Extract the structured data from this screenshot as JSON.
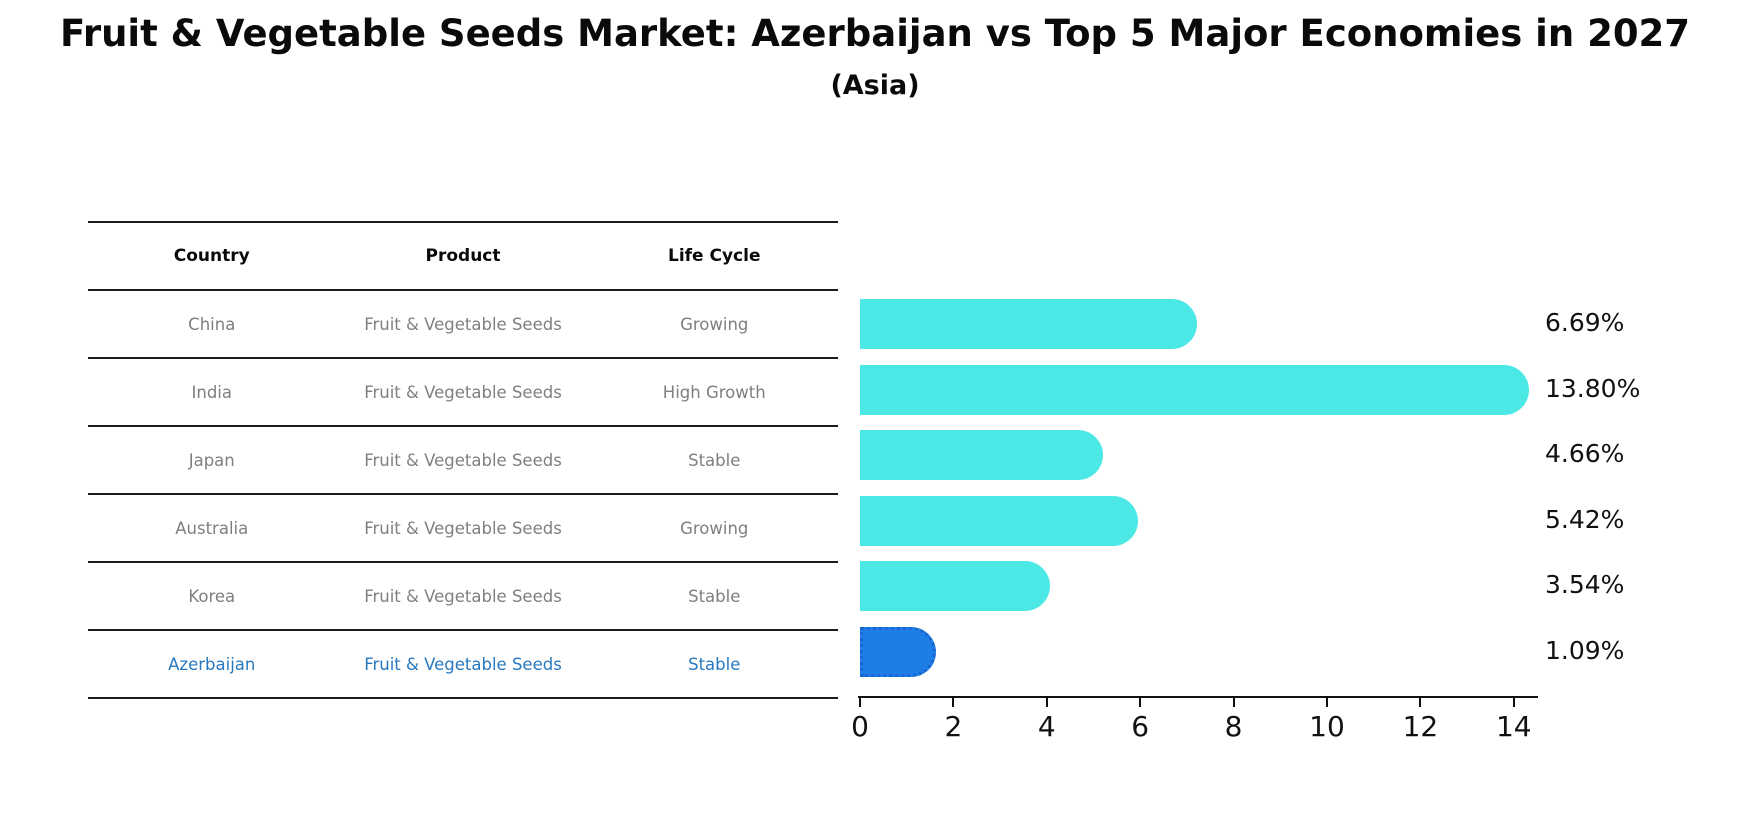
{
  "title": "Fruit & Vegetable Seeds Market: Azerbaijan vs Top 5 Major Economies in 2027",
  "subtitle": "(Asia)",
  "table": {
    "headers": [
      "Country",
      "Product",
      "Life Cycle"
    ],
    "rows": [
      {
        "country": "China",
        "product": "Fruit & Vegetable Seeds",
        "life_cycle": "Growing",
        "highlight": false
      },
      {
        "country": "India",
        "product": "Fruit & Vegetable Seeds",
        "life_cycle": "High Growth",
        "highlight": false
      },
      {
        "country": "Japan",
        "product": "Fruit & Vegetable Seeds",
        "life_cycle": "Stable",
        "highlight": false
      },
      {
        "country": "Australia",
        "product": "Fruit & Vegetable Seeds",
        "life_cycle": "Growing",
        "highlight": false
      },
      {
        "country": "Korea",
        "product": "Fruit & Vegetable Seeds",
        "life_cycle": "Stable",
        "highlight": false
      },
      {
        "country": "Azerbaijan",
        "product": "Fruit & Vegetable Seeds",
        "life_cycle": "Stable",
        "highlight": true
      }
    ]
  },
  "chart_data": {
    "type": "bar",
    "orientation": "horizontal",
    "title": "Fruit & Vegetable Seeds Market: Azerbaijan vs Top 5 Major Economies in 2027 (Asia)",
    "categories": [
      "China",
      "India",
      "Japan",
      "Australia",
      "Korea",
      "Azerbaijan"
    ],
    "values": [
      6.69,
      13.8,
      4.66,
      5.42,
      3.54,
      1.09
    ],
    "value_labels": [
      "6.69%",
      "13.80%",
      "4.66%",
      "5.42%",
      "3.54%",
      "1.09%"
    ],
    "xlim": [
      0,
      14.5
    ],
    "xticks": [
      0,
      2,
      4,
      6,
      8,
      10,
      12,
      14
    ],
    "grid": false,
    "legend": false,
    "highlight_index": 5
  },
  "colors": {
    "bar": "#4ce8e6",
    "highlight_bar": "#1e7ee8",
    "highlight_border": "#1a66d0",
    "table_text": "#7f7f7f",
    "highlight_text": "#2878be",
    "ink": "#111111"
  }
}
